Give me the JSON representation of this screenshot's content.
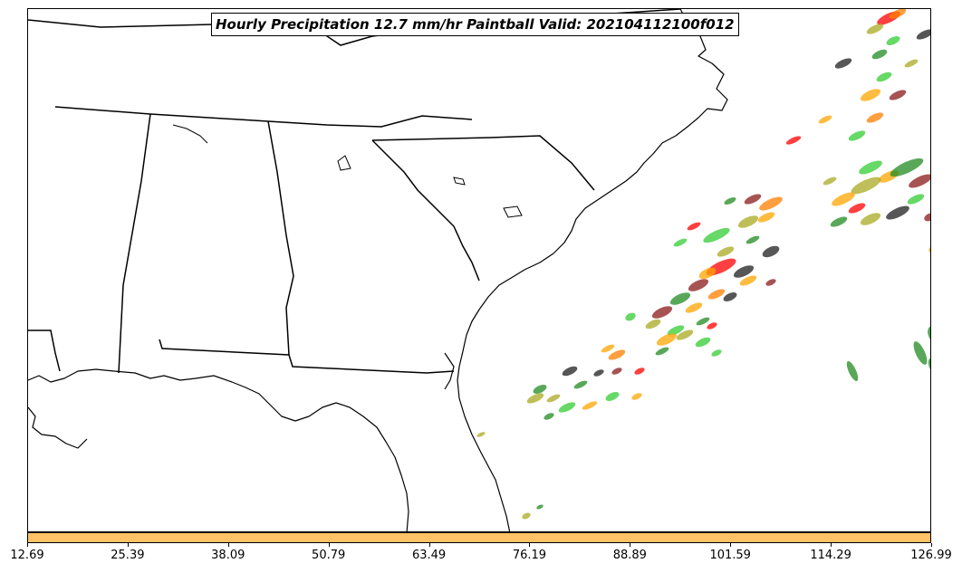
{
  "title": "Hourly Precipitation 12.7 mm/hr Paintball Valid: 202104112100f012",
  "colorbar": {
    "color": "#ffc266",
    "ticks": [
      "12.69",
      "25.39",
      "38.09",
      "50.79",
      "63.49",
      "76.19",
      "88.89",
      "101.59",
      "114.29",
      "126.99"
    ]
  },
  "member_colors": [
    "#ff0000",
    "#ff7f00",
    "#33cc33",
    "#228b22",
    "#8b1a1a",
    "#aaaa22",
    "#ffa500",
    "#1f1f1f"
  ]
}
